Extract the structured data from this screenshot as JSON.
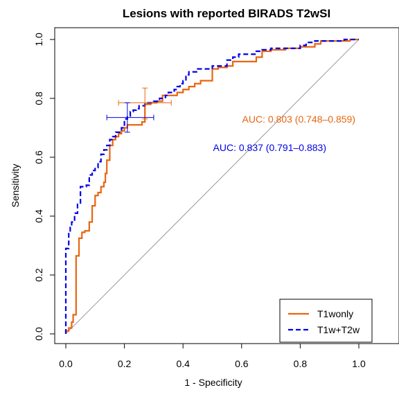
{
  "chart_data": {
    "type": "line",
    "title": "Lesions with reported BIRADS T2wSI",
    "xlabel": "1 - Specificity",
    "ylabel": "Sensitivity",
    "xlim": [
      0,
      1
    ],
    "ylim": [
      0,
      1
    ],
    "x_ticks": [
      "0.0",
      "0.2",
      "0.4",
      "0.6",
      "0.8",
      "1.0"
    ],
    "y_ticks": [
      "0.0",
      "0.2",
      "0.4",
      "0.6",
      "0.8",
      "1.0"
    ],
    "grid": false,
    "diagonal_reference": true,
    "legend_position": "bottom-right",
    "series": [
      {
        "name": "T1wonly",
        "color": "#E8650F",
        "dash": "solid",
        "auc_text": "AUC: 0.803 (0.748–0.859)",
        "points": [
          [
            0,
            0
          ],
          [
            0,
            0.01
          ],
          [
            0.01,
            0.01
          ],
          [
            0.01,
            0.02
          ],
          [
            0.02,
            0.02
          ],
          [
            0.02,
            0.04
          ],
          [
            0.025,
            0.04
          ],
          [
            0.025,
            0.065
          ],
          [
            0.035,
            0.065
          ],
          [
            0.035,
            0.265
          ],
          [
            0.045,
            0.265
          ],
          [
            0.045,
            0.325
          ],
          [
            0.055,
            0.325
          ],
          [
            0.055,
            0.345
          ],
          [
            0.065,
            0.345
          ],
          [
            0.065,
            0.35
          ],
          [
            0.08,
            0.35
          ],
          [
            0.08,
            0.38
          ],
          [
            0.09,
            0.38
          ],
          [
            0.09,
            0.435
          ],
          [
            0.1,
            0.435
          ],
          [
            0.1,
            0.47
          ],
          [
            0.11,
            0.47
          ],
          [
            0.11,
            0.48
          ],
          [
            0.12,
            0.48
          ],
          [
            0.12,
            0.5
          ],
          [
            0.13,
            0.5
          ],
          [
            0.13,
            0.515
          ],
          [
            0.135,
            0.515
          ],
          [
            0.135,
            0.545
          ],
          [
            0.14,
            0.545
          ],
          [
            0.14,
            0.59
          ],
          [
            0.15,
            0.59
          ],
          [
            0.15,
            0.64
          ],
          [
            0.16,
            0.64
          ],
          [
            0.16,
            0.66
          ],
          [
            0.17,
            0.66
          ],
          [
            0.17,
            0.67
          ],
          [
            0.18,
            0.67
          ],
          [
            0.18,
            0.68
          ],
          [
            0.19,
            0.68
          ],
          [
            0.19,
            0.69
          ],
          [
            0.2,
            0.69
          ],
          [
            0.2,
            0.7
          ],
          [
            0.21,
            0.7
          ],
          [
            0.21,
            0.71
          ],
          [
            0.26,
            0.71
          ],
          [
            0.26,
            0.72
          ],
          [
            0.27,
            0.72
          ],
          [
            0.27,
            0.78
          ],
          [
            0.29,
            0.78
          ],
          [
            0.29,
            0.785
          ],
          [
            0.31,
            0.785
          ],
          [
            0.31,
            0.79
          ],
          [
            0.33,
            0.79
          ],
          [
            0.33,
            0.81
          ],
          [
            0.38,
            0.81
          ],
          [
            0.38,
            0.82
          ],
          [
            0.4,
            0.82
          ],
          [
            0.4,
            0.83
          ],
          [
            0.42,
            0.83
          ],
          [
            0.42,
            0.84
          ],
          [
            0.44,
            0.84
          ],
          [
            0.44,
            0.85
          ],
          [
            0.46,
            0.85
          ],
          [
            0.46,
            0.86
          ],
          [
            0.5,
            0.86
          ],
          [
            0.5,
            0.9
          ],
          [
            0.52,
            0.9
          ],
          [
            0.52,
            0.905
          ],
          [
            0.55,
            0.905
          ],
          [
            0.55,
            0.91
          ],
          [
            0.57,
            0.91
          ],
          [
            0.57,
            0.925
          ],
          [
            0.65,
            0.925
          ],
          [
            0.65,
            0.94
          ],
          [
            0.67,
            0.94
          ],
          [
            0.67,
            0.96
          ],
          [
            0.7,
            0.96
          ],
          [
            0.7,
            0.965
          ],
          [
            0.75,
            0.965
          ],
          [
            0.75,
            0.97
          ],
          [
            0.8,
            0.97
          ],
          [
            0.8,
            0.975
          ],
          [
            0.85,
            0.975
          ],
          [
            0.85,
            0.985
          ],
          [
            0.87,
            0.985
          ],
          [
            0.87,
            0.995
          ],
          [
            0.97,
            0.995
          ],
          [
            0.97,
            1.0
          ],
          [
            1.0,
            1.0
          ]
        ]
      },
      {
        "name": "T1w+T2w",
        "color": "#0000E6",
        "dash": "dashed",
        "auc_text": "AUC: 0.837 (0.791–0.883)",
        "points": [
          [
            0,
            0
          ],
          [
            0,
            0.29
          ],
          [
            0.01,
            0.29
          ],
          [
            0.01,
            0.35
          ],
          [
            0.015,
            0.35
          ],
          [
            0.015,
            0.365
          ],
          [
            0.02,
            0.365
          ],
          [
            0.02,
            0.38
          ],
          [
            0.03,
            0.38
          ],
          [
            0.03,
            0.41
          ],
          [
            0.04,
            0.41
          ],
          [
            0.04,
            0.44
          ],
          [
            0.05,
            0.44
          ],
          [
            0.05,
            0.5
          ],
          [
            0.07,
            0.5
          ],
          [
            0.07,
            0.505
          ],
          [
            0.08,
            0.505
          ],
          [
            0.08,
            0.54
          ],
          [
            0.09,
            0.54
          ],
          [
            0.09,
            0.555
          ],
          [
            0.1,
            0.555
          ],
          [
            0.1,
            0.565
          ],
          [
            0.11,
            0.565
          ],
          [
            0.11,
            0.585
          ],
          [
            0.12,
            0.585
          ],
          [
            0.12,
            0.61
          ],
          [
            0.13,
            0.61
          ],
          [
            0.13,
            0.625
          ],
          [
            0.14,
            0.625
          ],
          [
            0.14,
            0.64
          ],
          [
            0.15,
            0.64
          ],
          [
            0.15,
            0.66
          ],
          [
            0.16,
            0.66
          ],
          [
            0.16,
            0.67
          ],
          [
            0.17,
            0.67
          ],
          [
            0.17,
            0.685
          ],
          [
            0.19,
            0.685
          ],
          [
            0.19,
            0.7
          ],
          [
            0.2,
            0.7
          ],
          [
            0.2,
            0.73
          ],
          [
            0.21,
            0.73
          ],
          [
            0.21,
            0.74
          ],
          [
            0.22,
            0.74
          ],
          [
            0.22,
            0.755
          ],
          [
            0.23,
            0.755
          ],
          [
            0.23,
            0.76
          ],
          [
            0.24,
            0.76
          ],
          [
            0.24,
            0.765
          ],
          [
            0.25,
            0.765
          ],
          [
            0.25,
            0.775
          ],
          [
            0.27,
            0.775
          ],
          [
            0.27,
            0.785
          ],
          [
            0.3,
            0.785
          ],
          [
            0.3,
            0.79
          ],
          [
            0.32,
            0.79
          ],
          [
            0.32,
            0.8
          ],
          [
            0.34,
            0.8
          ],
          [
            0.34,
            0.81
          ],
          [
            0.35,
            0.81
          ],
          [
            0.35,
            0.82
          ],
          [
            0.37,
            0.82
          ],
          [
            0.37,
            0.83
          ],
          [
            0.38,
            0.83
          ],
          [
            0.38,
            0.84
          ],
          [
            0.39,
            0.84
          ],
          [
            0.39,
            0.85
          ],
          [
            0.4,
            0.85
          ],
          [
            0.4,
            0.86
          ],
          [
            0.41,
            0.86
          ],
          [
            0.41,
            0.88
          ],
          [
            0.42,
            0.88
          ],
          [
            0.42,
            0.89
          ],
          [
            0.45,
            0.89
          ],
          [
            0.45,
            0.9
          ],
          [
            0.5,
            0.9
          ],
          [
            0.5,
            0.91
          ],
          [
            0.55,
            0.91
          ],
          [
            0.55,
            0.93
          ],
          [
            0.57,
            0.93
          ],
          [
            0.57,
            0.94
          ],
          [
            0.59,
            0.94
          ],
          [
            0.59,
            0.95
          ],
          [
            0.65,
            0.95
          ],
          [
            0.65,
            0.96
          ],
          [
            0.67,
            0.96
          ],
          [
            0.67,
            0.965
          ],
          [
            0.7,
            0.965
          ],
          [
            0.7,
            0.97
          ],
          [
            0.8,
            0.97
          ],
          [
            0.8,
            0.98
          ],
          [
            0.82,
            0.98
          ],
          [
            0.82,
            0.99
          ],
          [
            0.85,
            0.99
          ],
          [
            0.85,
            0.995
          ],
          [
            0.95,
            0.995
          ],
          [
            0.95,
            1.0
          ],
          [
            1.0,
            1.0
          ]
        ]
      }
    ],
    "error_crosses": [
      {
        "series": "T1wonly",
        "x": 0.27,
        "y": 0.785,
        "xmin": 0.18,
        "xmax": 0.36,
        "ymin": 0.73,
        "ymax": 0.835
      },
      {
        "series": "T1w+T2w",
        "x": 0.21,
        "y": 0.735,
        "xmin": 0.14,
        "xmax": 0.3,
        "ymin": 0.685,
        "ymax": 0.785
      }
    ]
  }
}
